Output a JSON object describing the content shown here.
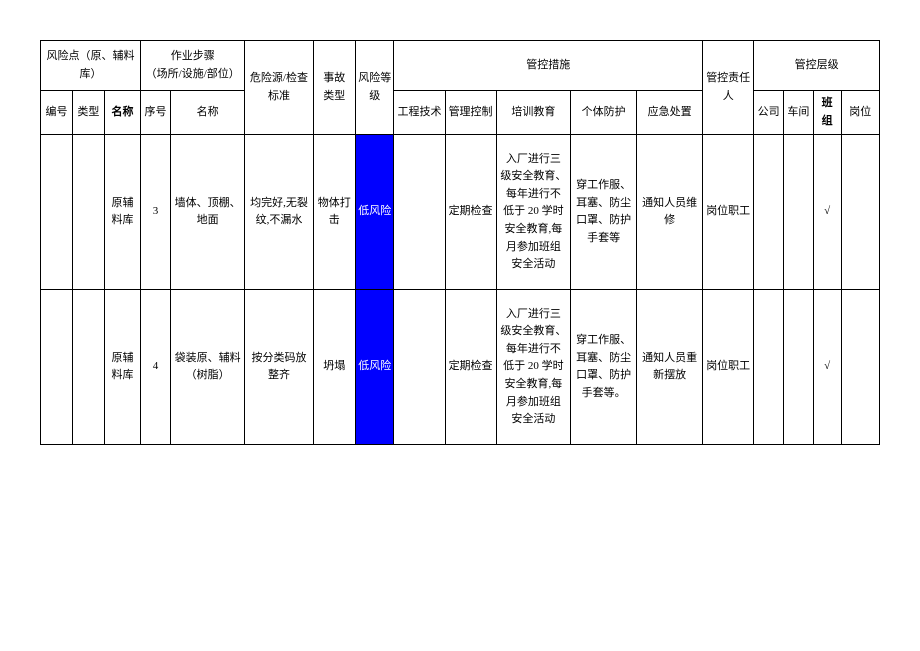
{
  "header": {
    "grp_risk_point": "风险点（原、辅料库）",
    "grp_work_step": "作业步骤\n（场所/设施/部位）",
    "hazard_standard": "危险源/检查\n标准",
    "accident_type": "事故\n类型",
    "risk_level": "风险等\n级",
    "grp_control_measure": "管控措施",
    "control_person": "管控责任人",
    "grp_control_level": "管控层级",
    "sub_no": "编号",
    "sub_type": "类型",
    "sub_name": "名称",
    "sub_seq": "序号",
    "sub_step_name": "名称",
    "sub_eng": "工程技术",
    "sub_mgmt": "管理控制",
    "sub_train": "培训教育",
    "sub_ppe": "个体防护",
    "sub_emerg": "应急处置",
    "sub_company": "公司",
    "sub_workshop": "车间",
    "sub_team": "班\n组",
    "sub_post": "岗位"
  },
  "rows": [
    {
      "no": "",
      "type": "",
      "name": "原辅\n料库",
      "seq": "3",
      "step_name": "墙体、顶棚、\n地面",
      "hazard": "均完好,无裂\n纹,不漏水",
      "accident": "物体打\n击",
      "risk": "低风险",
      "eng": "",
      "mgmt": "定期检查",
      "train": "入厂进行三\n级安全教育、\n每年进行不\n低于 20 学时\n安全教育,每\n月参加班组\n安全活动",
      "ppe": "穿工作服、\n耳塞、防尘\n口罩、防护\n手套等",
      "emerg": "通知人员维\n修",
      "person": "岗位职工",
      "company": "",
      "workshop": "",
      "team": "√",
      "post": ""
    },
    {
      "no": "",
      "type": "",
      "name": "原辅\n料库",
      "seq": "4",
      "step_name": "袋装原、辅料\n（树脂）",
      "hazard": "按分类码放\n整齐",
      "accident": "坍塌",
      "risk": "低风险",
      "eng": "",
      "mgmt": "定期检查",
      "train": "入厂进行三\n级安全教育、\n每年进行不\n低于 20 学时\n安全教育,每\n月参加班组\n安全活动",
      "ppe": "穿工作服、\n耳塞、防尘\n口罩、防护\n手套等。",
      "emerg": "通知人员重\n新摆放",
      "person": "岗位职工",
      "company": "",
      "workshop": "",
      "team": "√",
      "post": ""
    }
  ]
}
